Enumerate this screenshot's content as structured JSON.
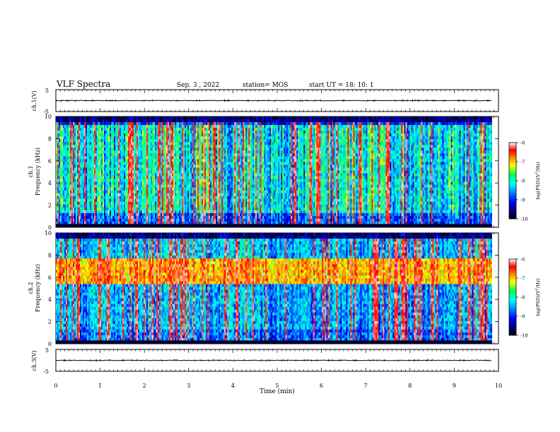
{
  "header": {
    "title": "VLF Spectra",
    "date": "Sep. 3 , 2022",
    "station": "station= MOS",
    "start": "start UT = 18: 10: 1"
  },
  "panels": {
    "ch1v_label": "ch.1(V)",
    "ch1_label": "ch.1",
    "ch2_label": "ch.2",
    "ch3v_label": "ch.3(V)",
    "freq_label": "Frequency (kHz)",
    "cbar_label_html": "log(PSD)(V²/Hz)"
  },
  "chart_data": [
    {
      "type": "line",
      "name": "ch1-waveform",
      "ylabel": "ch.1(V)",
      "ylim": [
        -5,
        5
      ],
      "yticks": [
        "5",
        "-5"
      ],
      "trace_level": 0,
      "xlim": [
        0,
        10
      ]
    },
    {
      "type": "heatmap",
      "name": "ch1-spectrogram",
      "ylabel": "Frequency (kHz)",
      "ylim": [
        0,
        10
      ],
      "yticks": [
        "0",
        "2",
        "4",
        "6",
        "8",
        "10"
      ],
      "xlim": [
        0,
        10
      ],
      "data_end_min": 9.85,
      "dominant_band_khz": [
        0.5,
        9.2
      ],
      "intensity_profile": "broadband impulsive activity, strongest 1.5-9 kHz, weak above 9.4 kHz"
    },
    {
      "type": "heatmap",
      "name": "ch2-spectrogram",
      "ylabel": "Frequency (kHz)",
      "ylim": [
        0,
        10
      ],
      "yticks": [
        "0",
        "2",
        "4",
        "6",
        "8",
        "10"
      ],
      "xlim": [
        0,
        10
      ],
      "data_end_min": 9.85,
      "dominant_band_khz": [
        5.3,
        7.8
      ],
      "intensity_profile": "persistent band 5.3-7.8 kHz, impulsive verticals, weak above 9 kHz"
    },
    {
      "type": "line",
      "name": "ch3-waveform",
      "ylabel": "ch.3(V)",
      "ylim": [
        -5,
        5
      ],
      "yticks": [
        "5",
        "-5"
      ],
      "trace_level": 0,
      "xlim": [
        0,
        10
      ]
    }
  ],
  "colorbar": {
    "ticks": [
      "-6",
      "-7",
      "-8",
      "-9",
      "-10"
    ],
    "range": [
      -10,
      -6
    ],
    "stops": [
      "#000000",
      "#00007a",
      "#0000ff",
      "#0099ff",
      "#00ffff",
      "#00ff55",
      "#ffff00",
      "#ff8800",
      "#ff0000",
      "#ffffff"
    ]
  },
  "xaxis": {
    "label": "Time (min)",
    "ticks": [
      "0",
      "1",
      "2",
      "3",
      "4",
      "5",
      "6",
      "7",
      "8",
      "9",
      "10"
    ],
    "range": [
      0,
      10
    ]
  }
}
